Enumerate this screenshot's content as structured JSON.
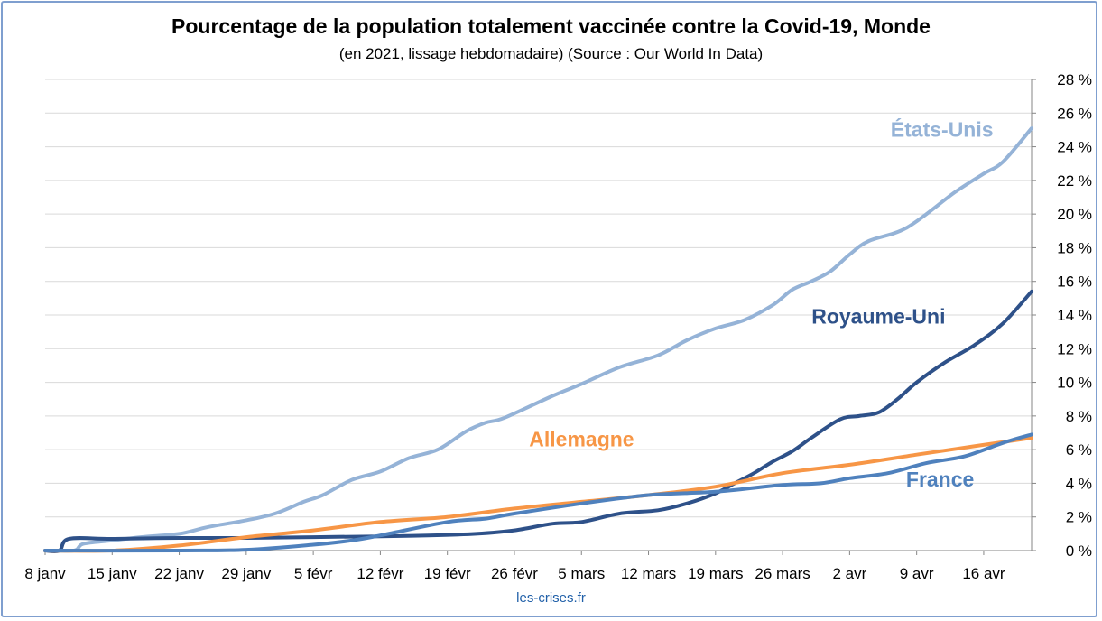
{
  "chart_data": {
    "type": "line",
    "title": "Pourcentage de la population totalement vaccinée contre la Covid-19, Monde",
    "subtitle": "(en 2021, lissage hebdomadaire) (Source : Our World In Data)",
    "source_note": "les-crises.fr",
    "x_start": "2021-01-08",
    "x_ticks": [
      "8 janv",
      "15 janv",
      "22 janv",
      "29 janv",
      "5 févr",
      "12 févr",
      "19 févr",
      "26 févr",
      "5 mars",
      "12 mars",
      "19 mars",
      "26 mars",
      "2 avr",
      "9 avr",
      "16 avr"
    ],
    "y_ticks": [
      "0 %",
      "2 %",
      "4 %",
      "6 %",
      "8 %",
      "10 %",
      "12 %",
      "14 %",
      "16 %",
      "18 %",
      "20 %",
      "22 %",
      "24 %",
      "26 %",
      "28 %"
    ],
    "ylim": [
      0,
      28
    ],
    "y_axis_side": "right",
    "grid": true,
    "series": [
      {
        "name": "États-Unis",
        "color": "#95b3d7",
        "x": [
          0,
          3,
          4,
          7,
          10,
          14,
          17,
          21,
          24,
          27,
          29,
          32,
          35,
          38,
          41,
          44,
          46,
          48,
          53,
          56,
          60,
          64,
          67,
          70,
          73,
          76,
          78,
          80,
          82,
          84,
          86,
          90,
          95,
          98,
          100,
          103
        ],
        "y": [
          0,
          0,
          0.4,
          0.6,
          0.8,
          1.0,
          1.4,
          1.8,
          2.2,
          2.9,
          3.3,
          4.2,
          4.7,
          5.5,
          6.0,
          7.1,
          7.6,
          7.9,
          9.2,
          9.9,
          10.9,
          11.6,
          12.5,
          13.2,
          13.7,
          14.6,
          15.5,
          16.0,
          16.6,
          17.6,
          18.4,
          19.2,
          21.3,
          22.4,
          23.1,
          25.1
        ]
      },
      {
        "name": "Royaume-Uni",
        "color": "#2e5189",
        "x": [
          0,
          1.5,
          2.5,
          7,
          14,
          21,
          28,
          35,
          40,
          45,
          49,
          53,
          56,
          60,
          64,
          67,
          70,
          72,
          74,
          76,
          78,
          80,
          83,
          85,
          87,
          89,
          91,
          94,
          97,
          100,
          103
        ],
        "y": [
          0,
          0,
          0.7,
          0.7,
          0.75,
          0.75,
          0.8,
          0.85,
          0.9,
          1.0,
          1.2,
          1.6,
          1.7,
          2.2,
          2.4,
          2.8,
          3.4,
          4.0,
          4.6,
          5.3,
          5.9,
          6.7,
          7.8,
          8.0,
          8.2,
          9.0,
          10.0,
          11.2,
          12.2,
          13.5,
          15.4
        ]
      },
      {
        "name": "Allemagne",
        "color": "#f79646",
        "x": [
          0,
          7,
          14,
          21,
          28,
          35,
          42,
          49,
          56,
          63,
          70,
          77,
          84,
          91,
          97,
          103
        ],
        "y": [
          0,
          0,
          0.3,
          0.8,
          1.2,
          1.7,
          2.0,
          2.5,
          2.9,
          3.3,
          3.8,
          4.6,
          5.1,
          5.7,
          6.2,
          6.7
        ]
      },
      {
        "name": "France",
        "color": "#4f81bd",
        "x": [
          0,
          14,
          21,
          28,
          32,
          35,
          42,
          46,
          49,
          56,
          63,
          70,
          77,
          81,
          84,
          88,
          92,
          96,
          100,
          103
        ],
        "y": [
          0,
          0,
          0.05,
          0.35,
          0.6,
          0.9,
          1.7,
          1.9,
          2.2,
          2.8,
          3.3,
          3.5,
          3.9,
          4.0,
          4.3,
          4.6,
          5.2,
          5.6,
          6.4,
          6.9
        ]
      }
    ],
    "series_labels": [
      {
        "text": "États-Unis",
        "color": "#95b3d7",
        "x": 99,
        "y": 24.6
      },
      {
        "text": "Royaume-Uni",
        "color": "#2e5189",
        "x": 94,
        "y": 13.5
      },
      {
        "text": "Allemagne",
        "color": "#f79646",
        "x": 61.5,
        "y": 6.2
      },
      {
        "text": "France",
        "color": "#4f81bd",
        "x": 97,
        "y": 3.8
      }
    ]
  }
}
